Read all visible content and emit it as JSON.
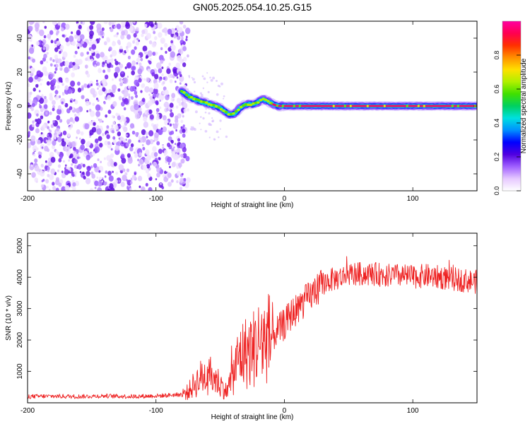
{
  "figure_title": "GN05.2025.054.10.25.G15",
  "chart_data": [
    {
      "type": "heatmap",
      "xlabel": "Height of straight line (km)",
      "ylabel": "Frequency (Hz)",
      "xlim": [
        -200,
        150
      ],
      "ylim": [
        -50,
        50
      ],
      "x_ticks": [
        -200,
        -100,
        0,
        100
      ],
      "y_ticks": [
        -40,
        -20,
        0,
        20,
        40
      ],
      "noise_region_x": [
        -200,
        -78
      ],
      "signal_track": [
        {
          "x": -80,
          "y": 9
        },
        {
          "x": -77,
          "y": 7
        },
        {
          "x": -73,
          "y": 5
        },
        {
          "x": -70,
          "y": 4
        },
        {
          "x": -66,
          "y": 3
        },
        {
          "x": -62,
          "y": 2
        },
        {
          "x": -58,
          "y": 1
        },
        {
          "x": -54,
          "y": 0
        },
        {
          "x": -50,
          "y": -1
        },
        {
          "x": -47,
          "y": -3
        },
        {
          "x": -43,
          "y": -5
        },
        {
          "x": -40,
          "y": -5
        },
        {
          "x": -37,
          "y": -3
        },
        {
          "x": -33,
          "y": 0
        },
        {
          "x": -29,
          "y": 1
        },
        {
          "x": -25,
          "y": 1
        },
        {
          "x": -21,
          "y": 2
        },
        {
          "x": -17,
          "y": 4
        },
        {
          "x": -13,
          "y": 3
        },
        {
          "x": -9,
          "y": 1
        },
        {
          "x": -5,
          "y": 0
        },
        {
          "x": 0,
          "y": 0
        },
        {
          "x": 20,
          "y": 0
        },
        {
          "x": 40,
          "y": 0
        },
        {
          "x": 60,
          "y": 0
        },
        {
          "x": 80,
          "y": 0
        },
        {
          "x": 100,
          "y": 0
        },
        {
          "x": 120,
          "y": 0
        },
        {
          "x": 150,
          "y": 0
        }
      ],
      "colorbar": {
        "label": "Normalized spectral amplitude",
        "range": [
          0,
          1
        ],
        "ticks": [
          0.0,
          0.2,
          0.4,
          0.6,
          0.8
        ],
        "tick_labels": [
          "0.0",
          "0.2",
          "0.4",
          "0.6",
          "0.8"
        ],
        "colormap": [
          "#ffffff",
          "#e6c8ff",
          "#a060ff",
          "#5000e0",
          "#0000ff",
          "#0090ff",
          "#00e0e0",
          "#00d060",
          "#40e000",
          "#b0f000",
          "#ffe000",
          "#ff9000",
          "#ff3000",
          "#ff0050",
          "#ff00a0"
        ]
      }
    },
    {
      "type": "line",
      "xlabel": "Height of straight line (km)",
      "ylabel": "SNR (10 * v/v)",
      "xlim": [
        -200,
        150
      ],
      "ylim": [
        0,
        5400
      ],
      "x_ticks": [
        -200,
        -100,
        0,
        100
      ],
      "y_ticks": [
        1000,
        2000,
        3000,
        4000,
        5000
      ],
      "color": "#ee2222",
      "series": [
        {
          "x": [
            -200,
            -180,
            -160,
            -140,
            -120,
            -100,
            -90,
            -80,
            -75,
            -70,
            -65,
            -60,
            -55,
            -50,
            -45,
            -40,
            -35,
            -30,
            -25,
            -20,
            -15,
            -10,
            -5,
            0,
            5,
            10,
            15,
            20,
            25,
            30,
            35,
            40,
            45,
            50,
            60,
            70,
            80,
            90,
            100,
            110,
            120,
            130,
            140,
            150
          ],
          "values": [
            200,
            210,
            200,
            220,
            200,
            220,
            240,
            270,
            350,
            600,
            800,
            900,
            800,
            600,
            350,
            900,
            1500,
            1600,
            1700,
            1900,
            2000,
            2100,
            2300,
            2500,
            2800,
            3000,
            3200,
            3400,
            3600,
            3800,
            3900,
            3950,
            4000,
            4100,
            4100,
            4100,
            4050,
            4050,
            4000,
            4050,
            4000,
            3950,
            3900,
            3850
          ]
        }
      ]
    }
  ]
}
